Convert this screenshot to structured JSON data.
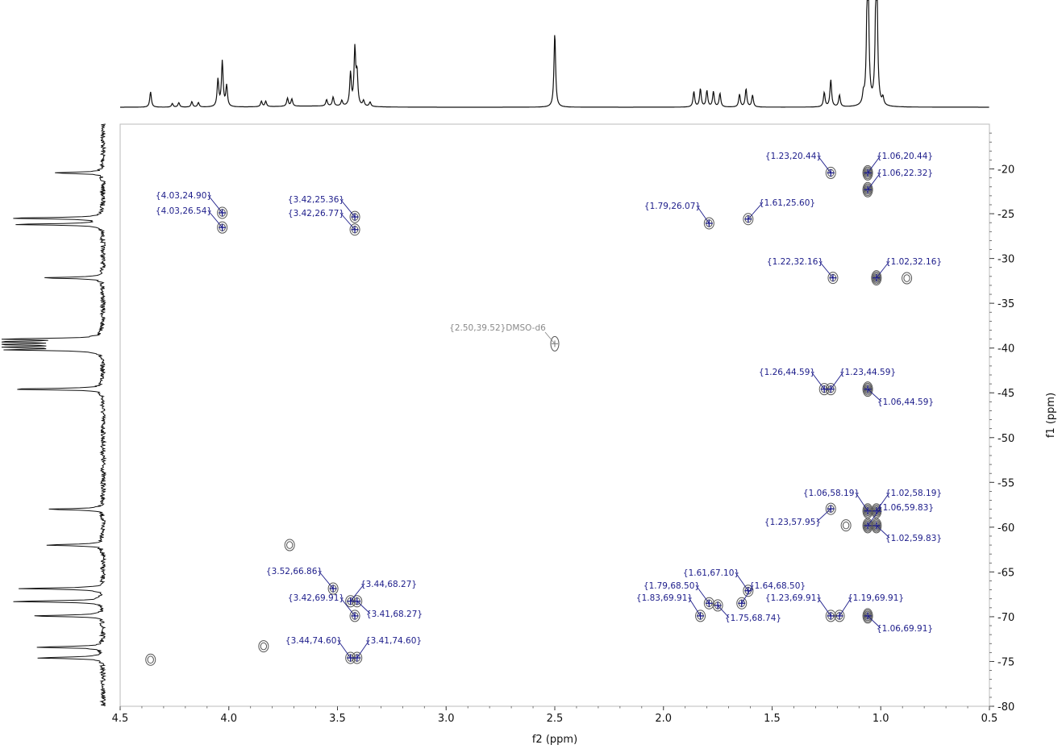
{
  "chart_data": {
    "type": "scatter",
    "subtype": "2D NMR HSQC contour plot",
    "xlabel": "f2 (ppm)",
    "ylabel": "f1 (ppm)",
    "xlim": [
      4.5,
      0.5
    ],
    "ylim": [
      15,
      80
    ],
    "x_ticks": [
      "4.5",
      "4.0",
      "3.5",
      "3.0",
      "2.5",
      "2.0",
      "1.5",
      "1.0",
      "0.5"
    ],
    "y_ticks": [
      "20",
      "25",
      "30",
      "35",
      "40",
      "45",
      "50",
      "55",
      "60",
      "65",
      "70",
      "75",
      "80"
    ],
    "colors": {
      "peak_label": "#1c1c8a",
      "solvent_label": "#8a8a8a",
      "contour": "#555555",
      "trace": "#111111",
      "frame": "#bbbbbb"
    },
    "peaks": [
      {
        "label": "{1.23,20.44}",
        "x": 1.23,
        "y": 20.44
      },
      {
        "label": "{1.06,20.44}",
        "x": 1.06,
        "y": 20.44
      },
      {
        "label": "{1.06,22.32}",
        "x": 1.06,
        "y": 22.32
      },
      {
        "label": "{4.03,24.90}",
        "x": 4.03,
        "y": 24.9
      },
      {
        "label": "{4.03,26.54}",
        "x": 4.03,
        "y": 26.54
      },
      {
        "label": "{3.42,25.36}",
        "x": 3.42,
        "y": 25.36
      },
      {
        "label": "{3.42,26.77}",
        "x": 3.42,
        "y": 26.77
      },
      {
        "label": "{1.79,26.07}",
        "x": 1.79,
        "y": 26.07
      },
      {
        "label": "{1.61,25.60}",
        "x": 1.61,
        "y": 25.6
      },
      {
        "label": "{1.22,32.16}",
        "x": 1.22,
        "y": 32.16
      },
      {
        "label": "{1.02,32.16}",
        "x": 1.02,
        "y": 32.16
      },
      {
        "label": "{1.26,44.59}",
        "x": 1.26,
        "y": 44.59
      },
      {
        "label": "{1.23,44.59}",
        "x": 1.23,
        "y": 44.59
      },
      {
        "label": "{1.06,44.59}",
        "x": 1.06,
        "y": 44.59
      },
      {
        "label": "{1.06,58.19}",
        "x": 1.06,
        "y": 58.19
      },
      {
        "label": "{1.02,58.19}",
        "x": 1.02,
        "y": 58.19
      },
      {
        "label": "{1.06,59.83}",
        "x": 1.06,
        "y": 59.83
      },
      {
        "label": "{1.23,57.95}",
        "x": 1.23,
        "y": 57.95
      },
      {
        "label": "{1.02,59.83}",
        "x": 1.02,
        "y": 59.83
      },
      {
        "label": "{3.52,66.86}",
        "x": 3.52,
        "y": 66.86
      },
      {
        "label": "{3.44,68.27}",
        "x": 3.44,
        "y": 68.27
      },
      {
        "label": "{3.42,69.91}",
        "x": 3.42,
        "y": 69.91
      },
      {
        "label": "{3.41,68.27}",
        "x": 3.41,
        "y": 68.27
      },
      {
        "label": "{3.44,74.60}",
        "x": 3.44,
        "y": 74.6
      },
      {
        "label": "{3.41,74.60}",
        "x": 3.41,
        "y": 74.6
      },
      {
        "label": "{1.61,67.10}",
        "x": 1.61,
        "y": 67.1
      },
      {
        "label": "{1.79,68.50}",
        "x": 1.79,
        "y": 68.5
      },
      {
        "label": "{1.64,68.50}",
        "x": 1.64,
        "y": 68.5
      },
      {
        "label": "{1.83,69.91}",
        "x": 1.83,
        "y": 69.91
      },
      {
        "label": "{1.75,68.74}",
        "x": 1.75,
        "y": 68.74
      },
      {
        "label": "{1.23,69.91}",
        "x": 1.23,
        "y": 69.91
      },
      {
        "label": "{1.19,69.91}",
        "x": 1.19,
        "y": 69.91
      },
      {
        "label": "{1.06,69.91}",
        "x": 1.06,
        "y": 69.91
      }
    ],
    "solvent": {
      "label": "{2.50,39.52}DMSO-d6",
      "x": 2.5,
      "y": 39.52
    },
    "unlabeled_contours": [
      {
        "x": 3.72,
        "y": 62.0
      },
      {
        "x": 3.84,
        "y": 73.3
      },
      {
        "x": 4.36,
        "y": 74.8
      },
      {
        "x": 1.16,
        "y": 59.8
      },
      {
        "x": 0.88,
        "y": 32.2
      }
    ],
    "proj_f2_peaks": [
      {
        "x": 4.36,
        "h": 0.17
      },
      {
        "x": 4.26,
        "h": 0.04
      },
      {
        "x": 4.23,
        "h": 0.05
      },
      {
        "x": 4.17,
        "h": 0.06
      },
      {
        "x": 4.14,
        "h": 0.05
      },
      {
        "x": 4.05,
        "h": 0.3
      },
      {
        "x": 4.03,
        "h": 0.5
      },
      {
        "x": 4.01,
        "h": 0.23
      },
      {
        "x": 3.85,
        "h": 0.06
      },
      {
        "x": 3.83,
        "h": 0.06
      },
      {
        "x": 3.73,
        "h": 0.09
      },
      {
        "x": 3.71,
        "h": 0.08
      },
      {
        "x": 3.55,
        "h": 0.07
      },
      {
        "x": 3.52,
        "h": 0.1
      },
      {
        "x": 3.48,
        "h": 0.06
      },
      {
        "x": 3.44,
        "h": 0.36
      },
      {
        "x": 3.42,
        "h": 0.62
      },
      {
        "x": 3.41,
        "h": 0.34
      },
      {
        "x": 3.38,
        "h": 0.06
      },
      {
        "x": 3.35,
        "h": 0.05
      },
      {
        "x": 2.5,
        "h": 0.82
      },
      {
        "x": 1.86,
        "h": 0.17
      },
      {
        "x": 1.83,
        "h": 0.2
      },
      {
        "x": 1.8,
        "h": 0.18
      },
      {
        "x": 1.77,
        "h": 0.17
      },
      {
        "x": 1.74,
        "h": 0.15
      },
      {
        "x": 1.65,
        "h": 0.14
      },
      {
        "x": 1.62,
        "h": 0.2
      },
      {
        "x": 1.59,
        "h": 0.13
      },
      {
        "x": 1.26,
        "h": 0.16
      },
      {
        "x": 1.23,
        "h": 0.3
      },
      {
        "x": 1.19,
        "h": 0.13
      },
      {
        "x": 1.08,
        "h": 0.1
      },
      {
        "x": 1.06,
        "h": 2.2
      },
      {
        "x": 1.02,
        "h": 2.2
      },
      {
        "x": 0.99,
        "h": 0.08
      }
    ],
    "proj_f1_peaks": [
      {
        "y": 20.44,
        "h": 0.55
      },
      {
        "y": 25.5,
        "h": 0.97
      },
      {
        "y": 26.2,
        "h": 0.94
      },
      {
        "y": 32.16,
        "h": 0.63
      },
      {
        "y": 39.0,
        "h": 0.99
      },
      {
        "y": 39.3,
        "h": 1.0
      },
      {
        "y": 39.6,
        "h": 1.0
      },
      {
        "y": 39.9,
        "h": 0.98
      },
      {
        "y": 40.2,
        "h": 0.93
      },
      {
        "y": 44.59,
        "h": 0.98
      },
      {
        "y": 58.0,
        "h": 0.6
      },
      {
        "y": 62.0,
        "h": 0.63
      },
      {
        "y": 66.86,
        "h": 0.88
      },
      {
        "y": 68.3,
        "h": 0.95
      },
      {
        "y": 69.91,
        "h": 0.76
      },
      {
        "y": 73.4,
        "h": 0.72
      },
      {
        "y": 74.6,
        "h": 0.72
      }
    ]
  }
}
